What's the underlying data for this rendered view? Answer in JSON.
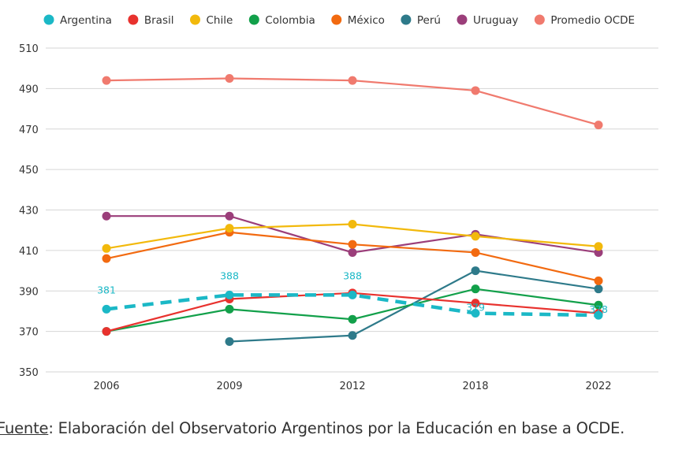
{
  "chart_data": {
    "type": "line",
    "categories": [
      "2006",
      "2009",
      "2012",
      "2018",
      "2022"
    ],
    "ylim": [
      350,
      510
    ],
    "yticks": [
      350,
      370,
      390,
      410,
      430,
      450,
      470,
      490,
      510
    ],
    "grid": true,
    "legend_position": "top",
    "series": [
      {
        "name": "Argentina",
        "color": "#1bb8c6",
        "dashed": true,
        "labels": true,
        "values": [
          381,
          388,
          388,
          379,
          378
        ]
      },
      {
        "name": "Brasil",
        "color": "#e8322e",
        "values": [
          370,
          386,
          389,
          384,
          379
        ]
      },
      {
        "name": "Chile",
        "color": "#f2b90c",
        "values": [
          411,
          421,
          423,
          417,
          412
        ]
      },
      {
        "name": "Colombia",
        "color": "#12a04a",
        "values": [
          370,
          381,
          376,
          391,
          383
        ]
      },
      {
        "name": "México",
        "color": "#f26a10",
        "values": [
          406,
          419,
          413,
          409,
          395
        ]
      },
      {
        "name": "Perú",
        "color": "#2e7a8a",
        "values": [
          null,
          365,
          368,
          400,
          391
        ]
      },
      {
        "name": "Uruguay",
        "color": "#9b3e7a",
        "values": [
          427,
          427,
          409,
          418,
          409
        ]
      },
      {
        "name": "Promedio OCDE",
        "color": "#f07a6e",
        "values": [
          494,
          495,
          494,
          489,
          472
        ]
      }
    ]
  },
  "source": {
    "label": "Fuente",
    "text": ": Elaboración del Observatorio Argentinos por la Educación en base a OCDE."
  }
}
